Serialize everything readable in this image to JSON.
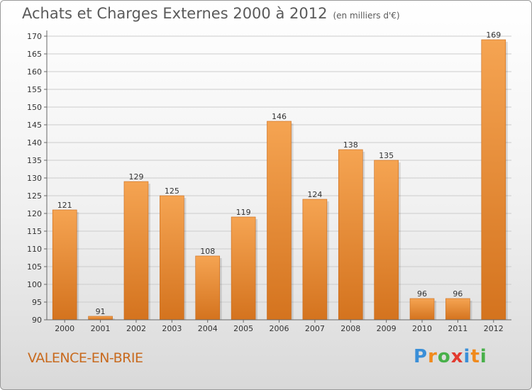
{
  "title": "Achats et Charges Externes 2000 à 2012",
  "subtitle": "(en milliers d'€)",
  "commune": "VALENCE-EN-BRIE",
  "logo": {
    "text": "Proxiti",
    "letters": [
      {
        "ch": "P",
        "color": "#3a8fd8"
      },
      {
        "ch": "r",
        "color": "#f08a1c"
      },
      {
        "ch": "o",
        "color": "#48b04a"
      },
      {
        "ch": "x",
        "color": "#e23a2f"
      },
      {
        "ch": "i",
        "color": "#3a8fd8"
      },
      {
        "ch": "t",
        "color": "#f08a1c"
      },
      {
        "ch": "i",
        "color": "#48b04a"
      }
    ]
  },
  "colors": {
    "bar_light": "#f5a452",
    "bar_dark": "#d4731e",
    "grid": "#cccccc"
  },
  "chart_data": {
    "type": "bar",
    "categories": [
      "2000",
      "2001",
      "2002",
      "2003",
      "2004",
      "2005",
      "2006",
      "2007",
      "2008",
      "2009",
      "2010",
      "2011",
      "2012"
    ],
    "values": [
      121,
      91,
      129,
      125,
      108,
      119,
      146,
      124,
      138,
      135,
      96,
      96,
      169
    ],
    "title": "Achats et Charges Externes 2000 à 2012",
    "xlabel": "",
    "ylabel": "",
    "ylim": [
      90,
      170
    ],
    "yticks": [
      90,
      95,
      100,
      105,
      110,
      115,
      120,
      125,
      130,
      135,
      140,
      145,
      150,
      155,
      160,
      165,
      170
    ],
    "grid": true
  }
}
